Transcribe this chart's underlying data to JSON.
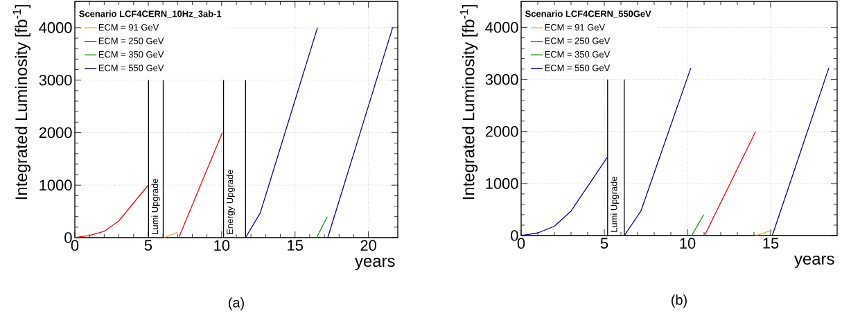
{
  "chart_data": [
    {
      "type": "line",
      "ylabel": "Integrated Luminosity  [fb$^{-1}$]",
      "xlabel": "years",
      "legend_title": "Scenario LCF4CERN_10Hz_3ab-1",
      "annotations": [
        "(a)"
      ],
      "xlim": [
        0,
        22
      ],
      "ylim": [
        0,
        4500
      ],
      "xticks": [
        0,
        5,
        10,
        15,
        20
      ],
      "yticks": [
        0,
        1000,
        2000,
        3000,
        4000
      ],
      "grid": true,
      "legend": "top left",
      "line_style": "solid",
      "series": [
        {
          "name": "ECM = 91 GeV",
          "color": "#ff9933",
          "x": [
            6.05,
            7.0
          ],
          "values": [
            0,
            100
          ]
        },
        {
          "name": "ECM = 250 GeV",
          "color": "#ff0000",
          "x": [
            0,
            1,
            2,
            3,
            4,
            5,
            6,
            7.08,
            10.05
          ],
          "values": [
            0,
            40,
            120,
            320,
            660,
            1000,
            null,
            0,
            2000
          ]
        },
        {
          "name": "ECM = 350 GeV",
          "color": "#009900",
          "x": [
            16.47,
            17.2
          ],
          "values": [
            0,
            400
          ]
        },
        {
          "name": "ECM = 550 GeV",
          "color": "#000099",
          "x": [
            11.63,
            12.63,
            16.53,
            17.0,
            17.23,
            21.65
          ],
          "values": [
            0,
            470,
            4000,
            null,
            0,
            4000
          ]
        }
      ],
      "ref_lines": [
        {
          "axis": "x",
          "value": 5.02,
          "label": "Lumi Upgrade",
          "color": "#000000"
        },
        {
          "axis": "x",
          "value": 6.02,
          "color": "#000000"
        },
        {
          "axis": "x",
          "value": 10.13,
          "label": "Energy Upgrade",
          "color": "#000000"
        },
        {
          "axis": "x",
          "value": 11.63,
          "color": "#000000"
        }
      ]
    },
    {
      "type": "line",
      "ylabel": "Integrated Luminosity  [fb$^{-1}$]",
      "xlabel": "years",
      "legend_title": "Scenario LCF4CERN_550GeV",
      "annotations": [
        "(b)"
      ],
      "xlim": [
        0,
        19
      ],
      "ylim": [
        0,
        4500
      ],
      "xticks": [
        0,
        5,
        10,
        15
      ],
      "yticks": [
        0,
        1000,
        2000,
        3000,
        4000
      ],
      "grid": true,
      "legend": "top left",
      "line_style": "solid",
      "series": [
        {
          "name": "ECM = 91 GeV",
          "color": "#ff9933",
          "x": [
            14.1,
            15.07
          ],
          "values": [
            0,
            100
          ]
        },
        {
          "name": "ECM = 250 GeV",
          "color": "#ff0000",
          "x": [
            11.03,
            14.1
          ],
          "values": [
            0,
            2000
          ]
        },
        {
          "name": "ECM = 350 GeV",
          "color": "#009900",
          "x": [
            10.25,
            10.98
          ],
          "values": [
            0,
            400
          ]
        },
        {
          "name": "ECM = 550 GeV",
          "color": "#000099",
          "x": [
            0,
            1,
            2,
            3,
            5.17,
            5.7,
            6.2,
            7.2,
            10.2,
            12.0,
            15.1,
            18.5
          ],
          "values": [
            0,
            50,
            180,
            470,
            1500,
            null,
            0,
            470,
            3220,
            null,
            0,
            3220
          ]
        }
      ],
      "ref_lines": [
        {
          "axis": "x",
          "value": 5.2,
          "label": "Lumi Upgrade",
          "color": "#000000"
        },
        {
          "axis": "x",
          "value": 6.2,
          "color": "#000000"
        }
      ]
    }
  ]
}
